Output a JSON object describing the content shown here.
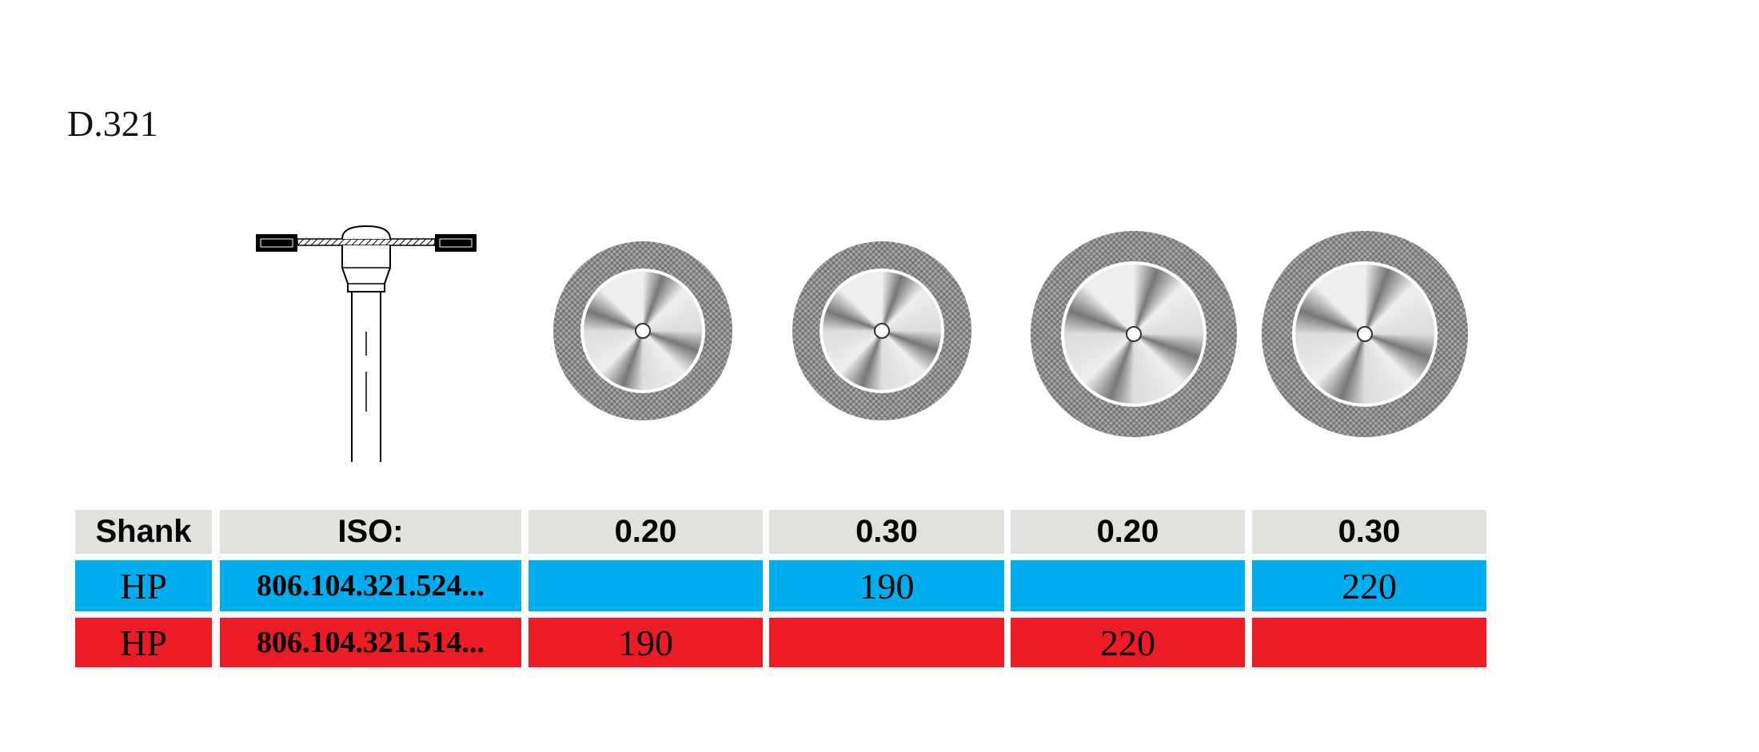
{
  "title": "D.321",
  "table": {
    "header": [
      "Shank",
      "ISO:",
      "0.20",
      "0.30",
      "0.20",
      "0.30"
    ],
    "rows": [
      {
        "shank": "HP",
        "iso": "806.104.321.524...",
        "cells": [
          null,
          "190",
          null,
          "220"
        ]
      },
      {
        "shank": "HP",
        "iso": "806.104.321.514...",
        "cells": [
          "190",
          null,
          "220",
          null
        ]
      }
    ]
  }
}
